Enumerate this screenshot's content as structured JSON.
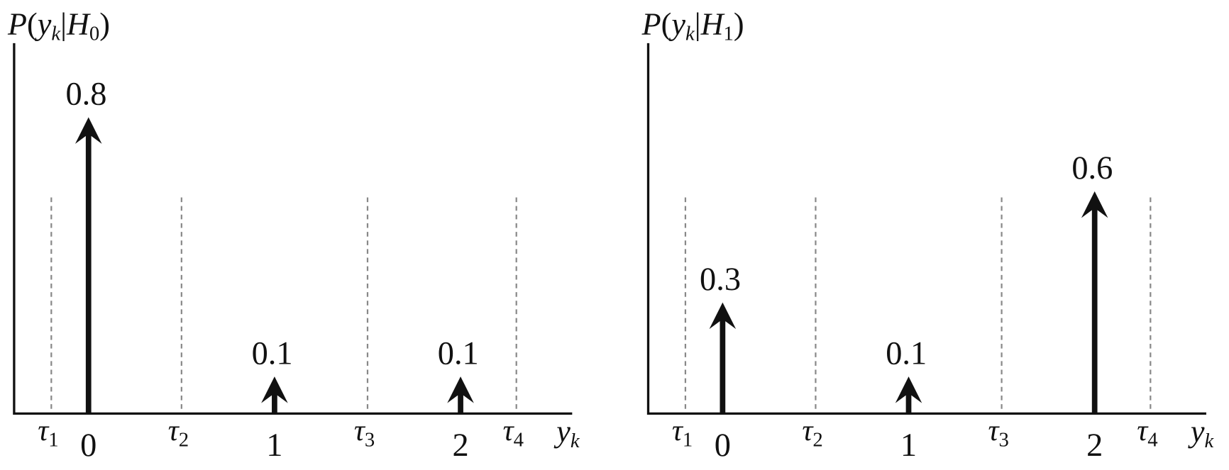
{
  "chart_data": [
    {
      "type": "stem",
      "ylabel": [
        {
          "text": "P",
          "italic": true
        },
        {
          "text": "("
        },
        {
          "text": "y",
          "italic": true
        },
        {
          "text": "k",
          "italic": true,
          "sub": true
        },
        {
          "text": "|"
        },
        {
          "text": "H",
          "italic": true
        },
        {
          "text": "0",
          "sub": true
        },
        {
          "text": ")"
        }
      ],
      "xlabel": [
        {
          "text": "y",
          "italic": true
        },
        {
          "text": "k",
          "italic": true,
          "sub": true
        }
      ],
      "x": [
        0,
        1,
        2
      ],
      "values": [
        0.8,
        0.1,
        0.1
      ],
      "color": "#111111",
      "xlim": [
        -0.4,
        2.6
      ],
      "ylim": [
        0,
        1
      ],
      "xticks": [
        0,
        1,
        2
      ],
      "thresholds": [
        {
          "value": -0.2,
          "label": "τ",
          "sub": "1"
        },
        {
          "value": 0.5,
          "label": "τ",
          "sub": "2"
        },
        {
          "value": 1.5,
          "label": "τ",
          "sub": "3"
        },
        {
          "value": 2.3,
          "label": "τ",
          "sub": "4"
        }
      ]
    },
    {
      "type": "stem",
      "ylabel": [
        {
          "text": "P",
          "italic": true
        },
        {
          "text": "("
        },
        {
          "text": "y",
          "italic": true
        },
        {
          "text": "k",
          "italic": true,
          "sub": true
        },
        {
          "text": "|"
        },
        {
          "text": "H",
          "italic": true
        },
        {
          "text": "1",
          "sub": true
        },
        {
          "text": ")"
        }
      ],
      "xlabel": [
        {
          "text": "y",
          "italic": true
        },
        {
          "text": "k",
          "italic": true,
          "sub": true
        }
      ],
      "x": [
        0,
        1,
        2
      ],
      "values": [
        0.3,
        0.1,
        0.6
      ],
      "color": "#111111",
      "xlim": [
        -0.4,
        2.6
      ],
      "ylim": [
        0,
        1
      ],
      "xticks": [
        0,
        1,
        2
      ],
      "thresholds": [
        {
          "value": -0.2,
          "label": "τ",
          "sub": "1"
        },
        {
          "value": 0.5,
          "label": "τ",
          "sub": "2"
        },
        {
          "value": 1.5,
          "label": "τ",
          "sub": "3"
        },
        {
          "value": 2.3,
          "label": "τ",
          "sub": "4"
        }
      ]
    }
  ]
}
